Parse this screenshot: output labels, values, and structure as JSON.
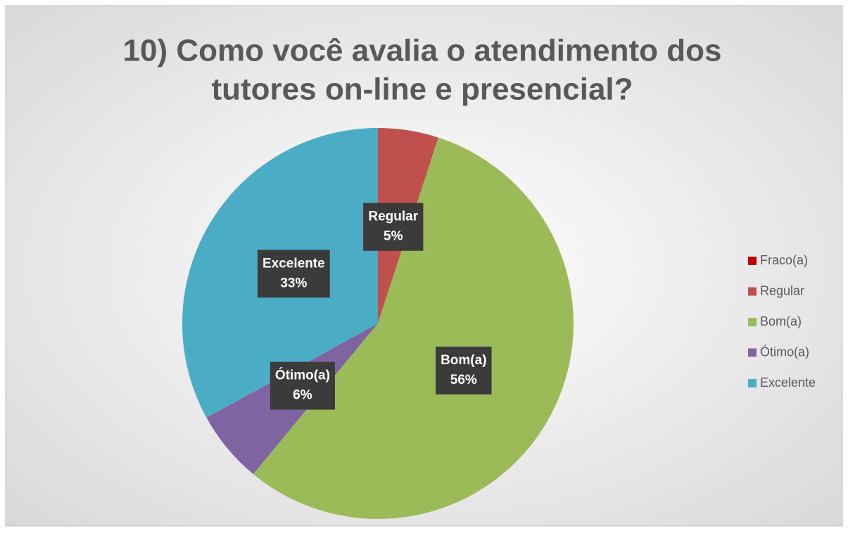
{
  "chart_data": {
    "type": "pie",
    "title": [
      "10) Como você avalia o atendimento dos",
      "tutores on-line e presencial?"
    ],
    "categories": [
      "Fraco(a)",
      "Regular",
      "Bom(a)",
      "Ótimo(a)",
      "Excelente"
    ],
    "values": [
      0,
      5,
      56,
      6,
      33
    ],
    "value_labels": [
      null,
      "5%",
      "56%",
      "6%",
      "33%"
    ],
    "colors": [
      "#c00000",
      "#c0504d",
      "#9bbb59",
      "#8064a2",
      "#4bacc6"
    ],
    "legend": "right"
  }
}
